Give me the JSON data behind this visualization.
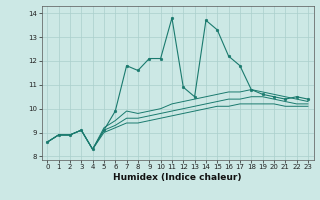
{
  "xlabel": "Humidex (Indice chaleur)",
  "background_color": "#cce8e5",
  "grid_color": "#aacfcc",
  "line_color": "#1a7a6e",
  "xlim": [
    -0.5,
    23.5
  ],
  "ylim": [
    7.85,
    14.3
  ],
  "yticks": [
    8,
    9,
    10,
    11,
    12,
    13,
    14
  ],
  "xticks": [
    0,
    1,
    2,
    3,
    4,
    5,
    6,
    7,
    8,
    9,
    10,
    11,
    12,
    13,
    14,
    15,
    16,
    17,
    18,
    19,
    20,
    21,
    22,
    23
  ],
  "series": [
    [
      8.6,
      8.9,
      8.9,
      9.1,
      8.3,
      9.1,
      9.9,
      11.8,
      11.6,
      12.1,
      12.1,
      13.8,
      10.9,
      10.5,
      13.7,
      13.3,
      12.2,
      11.8,
      10.8,
      10.6,
      10.5,
      10.4,
      10.5,
      10.4
    ],
    [
      8.6,
      8.9,
      8.9,
      9.1,
      8.3,
      9.2,
      9.5,
      9.9,
      9.8,
      9.9,
      10.0,
      10.2,
      10.3,
      10.4,
      10.5,
      10.6,
      10.7,
      10.7,
      10.8,
      10.7,
      10.6,
      10.5,
      10.4,
      10.3
    ],
    [
      8.6,
      8.9,
      8.9,
      9.1,
      8.3,
      9.1,
      9.3,
      9.6,
      9.6,
      9.7,
      9.8,
      9.9,
      10.0,
      10.1,
      10.2,
      10.3,
      10.4,
      10.4,
      10.5,
      10.5,
      10.4,
      10.3,
      10.2,
      10.2
    ],
    [
      8.6,
      8.9,
      8.9,
      9.1,
      8.3,
      9.0,
      9.2,
      9.4,
      9.4,
      9.5,
      9.6,
      9.7,
      9.8,
      9.9,
      10.0,
      10.1,
      10.1,
      10.2,
      10.2,
      10.2,
      10.2,
      10.1,
      10.1,
      10.1
    ]
  ],
  "xlabel_fontsize": 6.5,
  "xlabel_fontweight": "bold",
  "tick_fontsize": 5.0
}
